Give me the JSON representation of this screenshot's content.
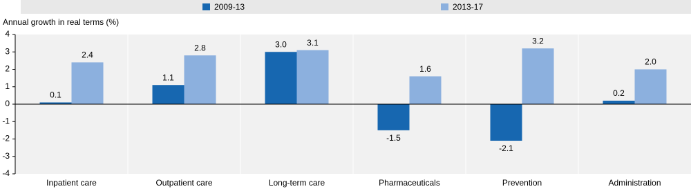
{
  "chart_data": {
    "type": "bar",
    "y_label": "Annual growth in real terms (%)",
    "categories": [
      "Inpatient care",
      "Outpatient care",
      "Long-term care",
      "Pharmaceuticals",
      "Prevention",
      "Administration"
    ],
    "series": [
      {
        "name": "2009-13",
        "color": "#1767b0",
        "values": [
          0.1,
          1.1,
          3.0,
          -1.5,
          -2.1,
          0.2
        ],
        "value_labels": [
          "0.1",
          "1.1",
          "3.0",
          "-1.5",
          "-2.1",
          "0.2"
        ]
      },
      {
        "name": "2013-17",
        "color": "#8cb0de",
        "values": [
          2.4,
          2.8,
          3.1,
          1.6,
          3.2,
          2.0
        ],
        "value_labels": [
          "2.4",
          "2.8",
          "3.1",
          "1.6",
          "3.2",
          "2.0"
        ]
      }
    ],
    "ylim": [
      -4,
      4
    ],
    "yticks": [
      -4,
      -3,
      -2,
      -1,
      0,
      1,
      2,
      3,
      4
    ],
    "grid": false
  }
}
